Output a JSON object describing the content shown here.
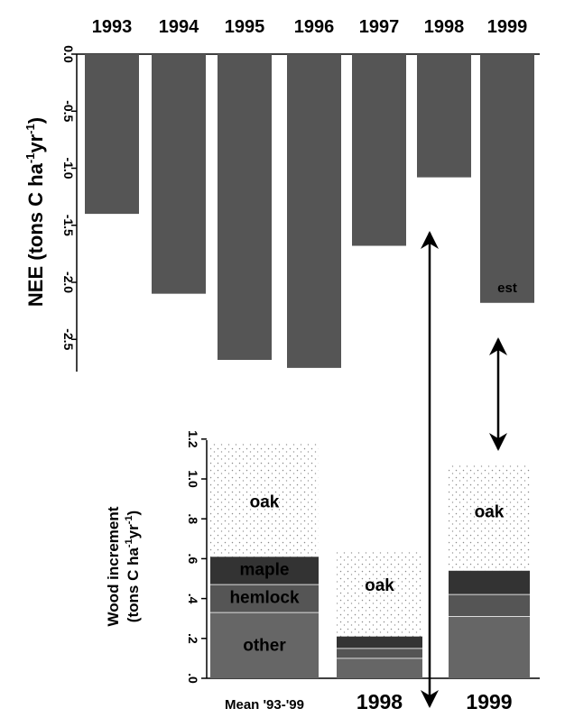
{
  "chart_data": [
    {
      "type": "bar",
      "categories": [
        "1993",
        "1994",
        "1995",
        "1996",
        "1997",
        "1998",
        "1999"
      ],
      "values": [
        -1.4,
        -2.1,
        -2.68,
        -2.75,
        -1.68,
        -1.08,
        -2.18
      ],
      "ylabel_main": "NEE (tons C ha",
      "ylabel_sup1": "-1",
      "ylabel_mid": "yr",
      "ylabel_sup2": "-1",
      "ylabel_end": ")",
      "ylim": [
        -2.75,
        0
      ],
      "yticks": [
        "0.0",
        "-0.5",
        "-1.0",
        "-1.5",
        "-2.0",
        "-2.5"
      ],
      "annotations": [
        {
          "category": "1999",
          "text": "est"
        }
      ],
      "bar_color": "#555555"
    },
    {
      "type": "stacked-bar",
      "categories": [
        "Mean '93-'99",
        "1998",
        "1999"
      ],
      "series": [
        {
          "name": "other",
          "values": [
            0.33,
            0.1,
            0.31
          ],
          "color": "#666666"
        },
        {
          "name": "hemlock",
          "values": [
            0.14,
            0.05,
            0.11
          ],
          "color": "#555555"
        },
        {
          "name": "maple",
          "values": [
            0.14,
            0.06,
            0.12
          ],
          "color": "#333333"
        },
        {
          "name": "oak",
          "values": [
            0.57,
            0.43,
            0.53
          ],
          "color": "#c8c8c8"
        }
      ],
      "segment_labels": [
        {
          "category": "Mean '93-'99",
          "labels": [
            "other",
            "hemlock",
            "maple",
            "oak"
          ]
        },
        {
          "category": "1998",
          "labels": [
            "oak"
          ]
        },
        {
          "category": "1999",
          "labels": [
            "oak"
          ]
        }
      ],
      "ylabel_line1": "Wood increment",
      "ylabel_line2_a": "(tons C ha",
      "ylabel_line2_sup1": "-1",
      "ylabel_line2_b": "yr",
      "ylabel_line2_sup2": "-1",
      "ylabel_line2_c": ")",
      "ylim": [
        0,
        1.2
      ],
      "yticks": [
        ".0",
        ".2",
        ".4",
        ".6",
        ".8",
        "1.0",
        "1.2"
      ]
    }
  ],
  "arrows": [
    {
      "from": "NEE 1998",
      "to": "Wood increment 1998"
    },
    {
      "from": "NEE 1999",
      "to": "Wood increment 1999"
    }
  ]
}
